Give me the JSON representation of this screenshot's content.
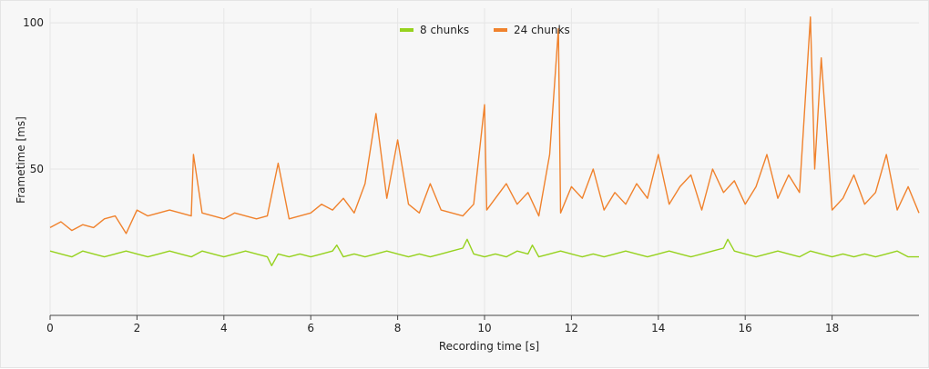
{
  "chart_data": {
    "type": "line",
    "title": "",
    "xlabel": "Recording time [s]",
    "ylabel": "Frametime [ms]",
    "xlim": [
      0,
      20
    ],
    "ylim": [
      0,
      105
    ],
    "x_ticks": [
      0,
      2,
      4,
      6,
      8,
      10,
      12,
      14,
      16,
      18
    ],
    "y_ticks": [
      50,
      100
    ],
    "x_tick_labels": [
      "0",
      "2",
      "4",
      "6",
      "8",
      "10",
      "12",
      "14",
      "16",
      "18"
    ],
    "y_tick_labels": [
      "50",
      "100"
    ],
    "grid": true,
    "legend_position": "top-center",
    "series": [
      {
        "name": "8 chunks",
        "color": "#96d21e",
        "x": [
          0,
          0.25,
          0.5,
          0.75,
          1,
          1.25,
          1.5,
          1.75,
          2,
          2.25,
          2.5,
          2.75,
          3,
          3.25,
          3.5,
          3.75,
          4,
          4.25,
          4.5,
          4.75,
          5,
          5.1,
          5.25,
          5.5,
          5.75,
          6,
          6.25,
          6.5,
          6.6,
          6.75,
          7,
          7.25,
          7.5,
          7.75,
          8,
          8.25,
          8.5,
          8.75,
          9,
          9.25,
          9.5,
          9.6,
          9.75,
          10,
          10.25,
          10.5,
          10.75,
          11,
          11.1,
          11.25,
          11.5,
          11.75,
          12,
          12.25,
          12.5,
          12.75,
          13,
          13.25,
          13.5,
          13.75,
          14,
          14.25,
          14.5,
          14.75,
          15,
          15.25,
          15.5,
          15.6,
          15.75,
          16,
          16.25,
          16.5,
          16.75,
          17,
          17.25,
          17.5,
          17.75,
          18,
          18.25,
          18.5,
          18.75,
          19,
          19.25,
          19.5,
          19.75,
          20
        ],
        "values": [
          22,
          21,
          20,
          22,
          21,
          20,
          21,
          22,
          21,
          20,
          21,
          22,
          21,
          20,
          22,
          21,
          20,
          21,
          22,
          21,
          20,
          17,
          21,
          20,
          21,
          20,
          21,
          22,
          24,
          20,
          21,
          20,
          21,
          22,
          21,
          20,
          21,
          20,
          21,
          22,
          23,
          26,
          21,
          20,
          21,
          20,
          22,
          21,
          24,
          20,
          21,
          22,
          21,
          20,
          21,
          20,
          21,
          22,
          21,
          20,
          21,
          22,
          21,
          20,
          21,
          22,
          23,
          26,
          22,
          21,
          20,
          21,
          22,
          21,
          20,
          22,
          21,
          20,
          21,
          20,
          21,
          20,
          21,
          22,
          20,
          20
        ]
      },
      {
        "name": "24 chunks",
        "color": "#f0822d",
        "x": [
          0,
          0.25,
          0.5,
          0.75,
          1,
          1.25,
          1.5,
          1.75,
          2,
          2.25,
          2.5,
          2.75,
          3,
          3.25,
          3.3,
          3.5,
          3.75,
          4,
          4.25,
          4.5,
          4.75,
          5,
          5.25,
          5.5,
          5.75,
          6,
          6.25,
          6.5,
          6.75,
          7,
          7.25,
          7.5,
          7.75,
          8,
          8.25,
          8.5,
          8.75,
          9,
          9.25,
          9.5,
          9.75,
          10,
          10.05,
          10.25,
          10.5,
          10.75,
          11,
          11.25,
          11.5,
          11.7,
          11.75,
          12,
          12.25,
          12.5,
          12.75,
          13,
          13.25,
          13.5,
          13.75,
          14,
          14.25,
          14.5,
          14.75,
          15,
          15.25,
          15.5,
          15.75,
          16,
          16.25,
          16.5,
          16.75,
          17,
          17.25,
          17.5,
          17.6,
          17.75,
          18,
          18.25,
          18.5,
          18.75,
          19,
          19.25,
          19.5,
          19.75,
          20
        ],
        "values": [
          30,
          32,
          29,
          31,
          30,
          33,
          34,
          28,
          36,
          34,
          35,
          36,
          35,
          34,
          55,
          35,
          34,
          33,
          35,
          34,
          33,
          34,
          52,
          33,
          34,
          35,
          38,
          36,
          40,
          35,
          45,
          69,
          40,
          60,
          38,
          35,
          45,
          36,
          35,
          34,
          38,
          72,
          36,
          40,
          45,
          38,
          42,
          34,
          55,
          98,
          35,
          44,
          40,
          50,
          36,
          42,
          38,
          45,
          40,
          55,
          38,
          44,
          48,
          36,
          50,
          42,
          46,
          38,
          44,
          55,
          40,
          48,
          42,
          102,
          50,
          88,
          36,
          40,
          48,
          38,
          42,
          55,
          36,
          44,
          35
        ]
      }
    ]
  }
}
